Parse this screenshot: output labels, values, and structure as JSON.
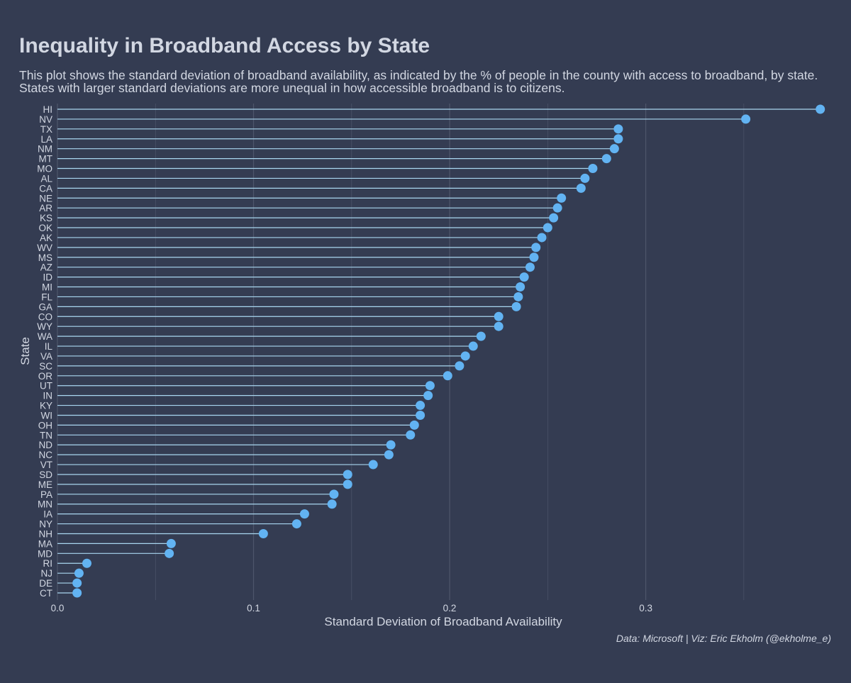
{
  "colors": {
    "background": "#343c52",
    "text": "#d2d7e2",
    "grid": "#4e566b",
    "segment": "#a9d6f0",
    "point": "#62b3f2"
  },
  "chart_data": {
    "type": "lollipop",
    "title": "Inequality in Broadband Access by State",
    "subtitle": "This plot shows the standard deviation of broadband availability, as indicated by the % of people in the county with access to broadband, by state. States with larger standard deviations are more unequal in how accessible broadband is to citizens.",
    "caption": "Data: Microsoft | Viz: Eric Ekholm (@ekholme_e)",
    "xlabel": "Standard Deviation of Broadband Availability",
    "ylabel": "State",
    "xlim": [
      0,
      0.392
    ],
    "xticks": [
      0.0,
      0.1,
      0.2,
      0.3
    ],
    "xtick_labels": [
      "0.0",
      "0.1",
      "0.2",
      "0.3"
    ],
    "grid": true,
    "legend": "none",
    "points": [
      {
        "state": "HI",
        "value": 0.389
      },
      {
        "state": "NV",
        "value": 0.351
      },
      {
        "state": "TX",
        "value": 0.286
      },
      {
        "state": "LA",
        "value": 0.286
      },
      {
        "state": "NM",
        "value": 0.284
      },
      {
        "state": "MT",
        "value": 0.28
      },
      {
        "state": "MO",
        "value": 0.273
      },
      {
        "state": "AL",
        "value": 0.269
      },
      {
        "state": "CA",
        "value": 0.267
      },
      {
        "state": "NE",
        "value": 0.257
      },
      {
        "state": "AR",
        "value": 0.255
      },
      {
        "state": "KS",
        "value": 0.253
      },
      {
        "state": "OK",
        "value": 0.25
      },
      {
        "state": "AK",
        "value": 0.247
      },
      {
        "state": "WV",
        "value": 0.244
      },
      {
        "state": "MS",
        "value": 0.243
      },
      {
        "state": "AZ",
        "value": 0.241
      },
      {
        "state": "ID",
        "value": 0.238
      },
      {
        "state": "MI",
        "value": 0.236
      },
      {
        "state": "FL",
        "value": 0.235
      },
      {
        "state": "GA",
        "value": 0.234
      },
      {
        "state": "CO",
        "value": 0.225
      },
      {
        "state": "WY",
        "value": 0.225
      },
      {
        "state": "WA",
        "value": 0.216
      },
      {
        "state": "IL",
        "value": 0.212
      },
      {
        "state": "VA",
        "value": 0.208
      },
      {
        "state": "SC",
        "value": 0.205
      },
      {
        "state": "OR",
        "value": 0.199
      },
      {
        "state": "UT",
        "value": 0.19
      },
      {
        "state": "IN",
        "value": 0.189
      },
      {
        "state": "KY",
        "value": 0.185
      },
      {
        "state": "WI",
        "value": 0.185
      },
      {
        "state": "OH",
        "value": 0.182
      },
      {
        "state": "TN",
        "value": 0.18
      },
      {
        "state": "ND",
        "value": 0.17
      },
      {
        "state": "NC",
        "value": 0.169
      },
      {
        "state": "VT",
        "value": 0.161
      },
      {
        "state": "SD",
        "value": 0.148
      },
      {
        "state": "ME",
        "value": 0.148
      },
      {
        "state": "PA",
        "value": 0.141
      },
      {
        "state": "MN",
        "value": 0.14
      },
      {
        "state": "IA",
        "value": 0.126
      },
      {
        "state": "NY",
        "value": 0.122
      },
      {
        "state": "NH",
        "value": 0.105
      },
      {
        "state": "MA",
        "value": 0.058
      },
      {
        "state": "MD",
        "value": 0.057
      },
      {
        "state": "RI",
        "value": 0.015
      },
      {
        "state": "NJ",
        "value": 0.011
      },
      {
        "state": "DE",
        "value": 0.01
      },
      {
        "state": "CT",
        "value": 0.01
      }
    ]
  }
}
